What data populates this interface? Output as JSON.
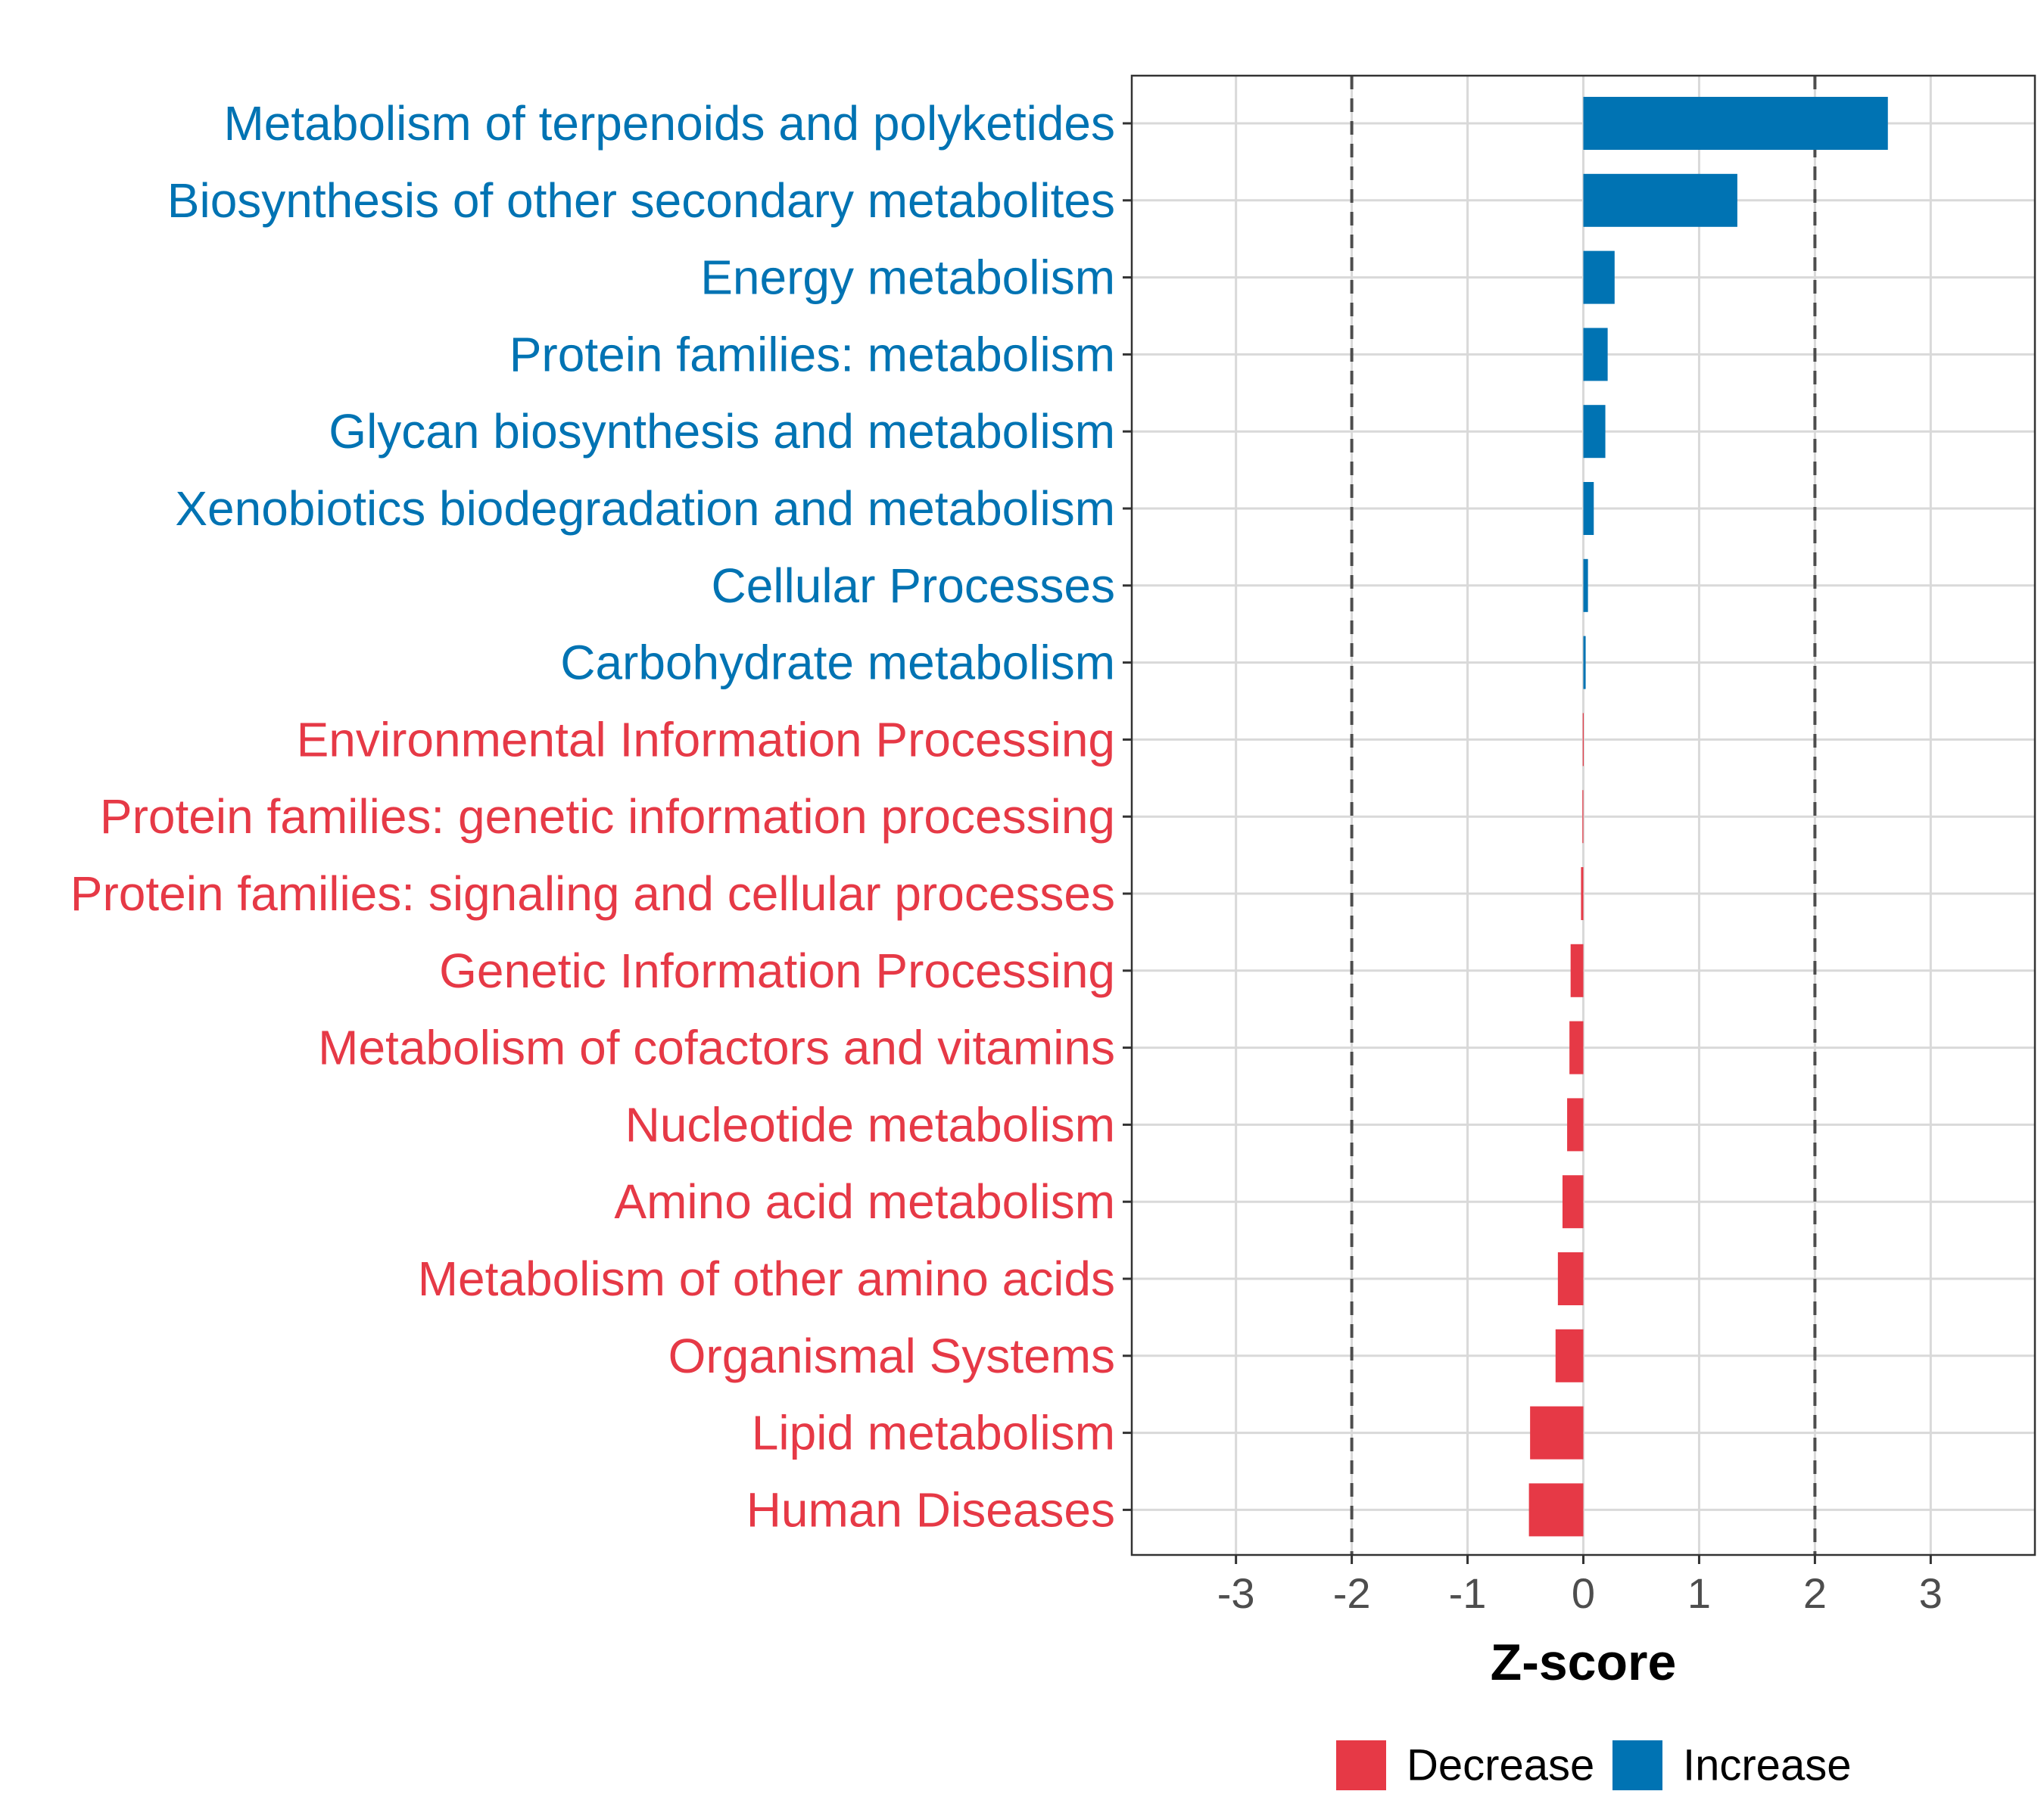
{
  "chart_data": {
    "type": "bar",
    "orientation": "horizontal",
    "title": "",
    "xlabel": "Z-score",
    "ylabel": "",
    "xlim": [
      -3.9,
      3.9
    ],
    "xticks": [
      -3,
      -2,
      -1,
      0,
      1,
      2,
      3
    ],
    "xtick_labels": [
      "-3",
      "-2",
      "-1",
      "0",
      "1",
      "2",
      "3"
    ],
    "reference_lines": [
      -2,
      2
    ],
    "grid": true,
    "colors": {
      "Increase": "#0073b3",
      "Decrease": "#e63946"
    },
    "legend": {
      "placement": "bottom",
      "items": [
        {
          "label": "Decrease",
          "color": "#e63946"
        },
        {
          "label": "Increase",
          "color": "#0073b3"
        }
      ]
    },
    "categories": [
      "Metabolism of terpenoids and polyketides",
      "Biosynthesis of other secondary metabolites",
      "Energy metabolism",
      "Protein families: metabolism",
      "Glycan biosynthesis and metabolism",
      "Xenobiotics biodegradation and metabolism",
      "Cellular Processes",
      "Carbohydrate metabolism",
      "Environmental Information Processing",
      "Protein families: genetic information processing",
      "Protein families: signaling and cellular processes",
      "Genetic Information Processing",
      "Metabolism of cofactors and vitamins",
      "Nucleotide metabolism",
      "Amino acid metabolism",
      "Metabolism of other amino acids",
      "Organismal Systems",
      "Lipid metabolism",
      "Human Diseases"
    ],
    "values": [
      2.63,
      1.33,
      0.27,
      0.21,
      0.19,
      0.09,
      0.04,
      0.02,
      -0.005,
      -0.008,
      -0.02,
      -0.11,
      -0.12,
      -0.14,
      -0.18,
      -0.22,
      -0.24,
      -0.46,
      -0.47
    ],
    "groups": [
      "Increase",
      "Increase",
      "Increase",
      "Increase",
      "Increase",
      "Increase",
      "Increase",
      "Increase",
      "Decrease",
      "Decrease",
      "Decrease",
      "Decrease",
      "Decrease",
      "Decrease",
      "Decrease",
      "Decrease",
      "Decrease",
      "Decrease",
      "Decrease"
    ]
  }
}
